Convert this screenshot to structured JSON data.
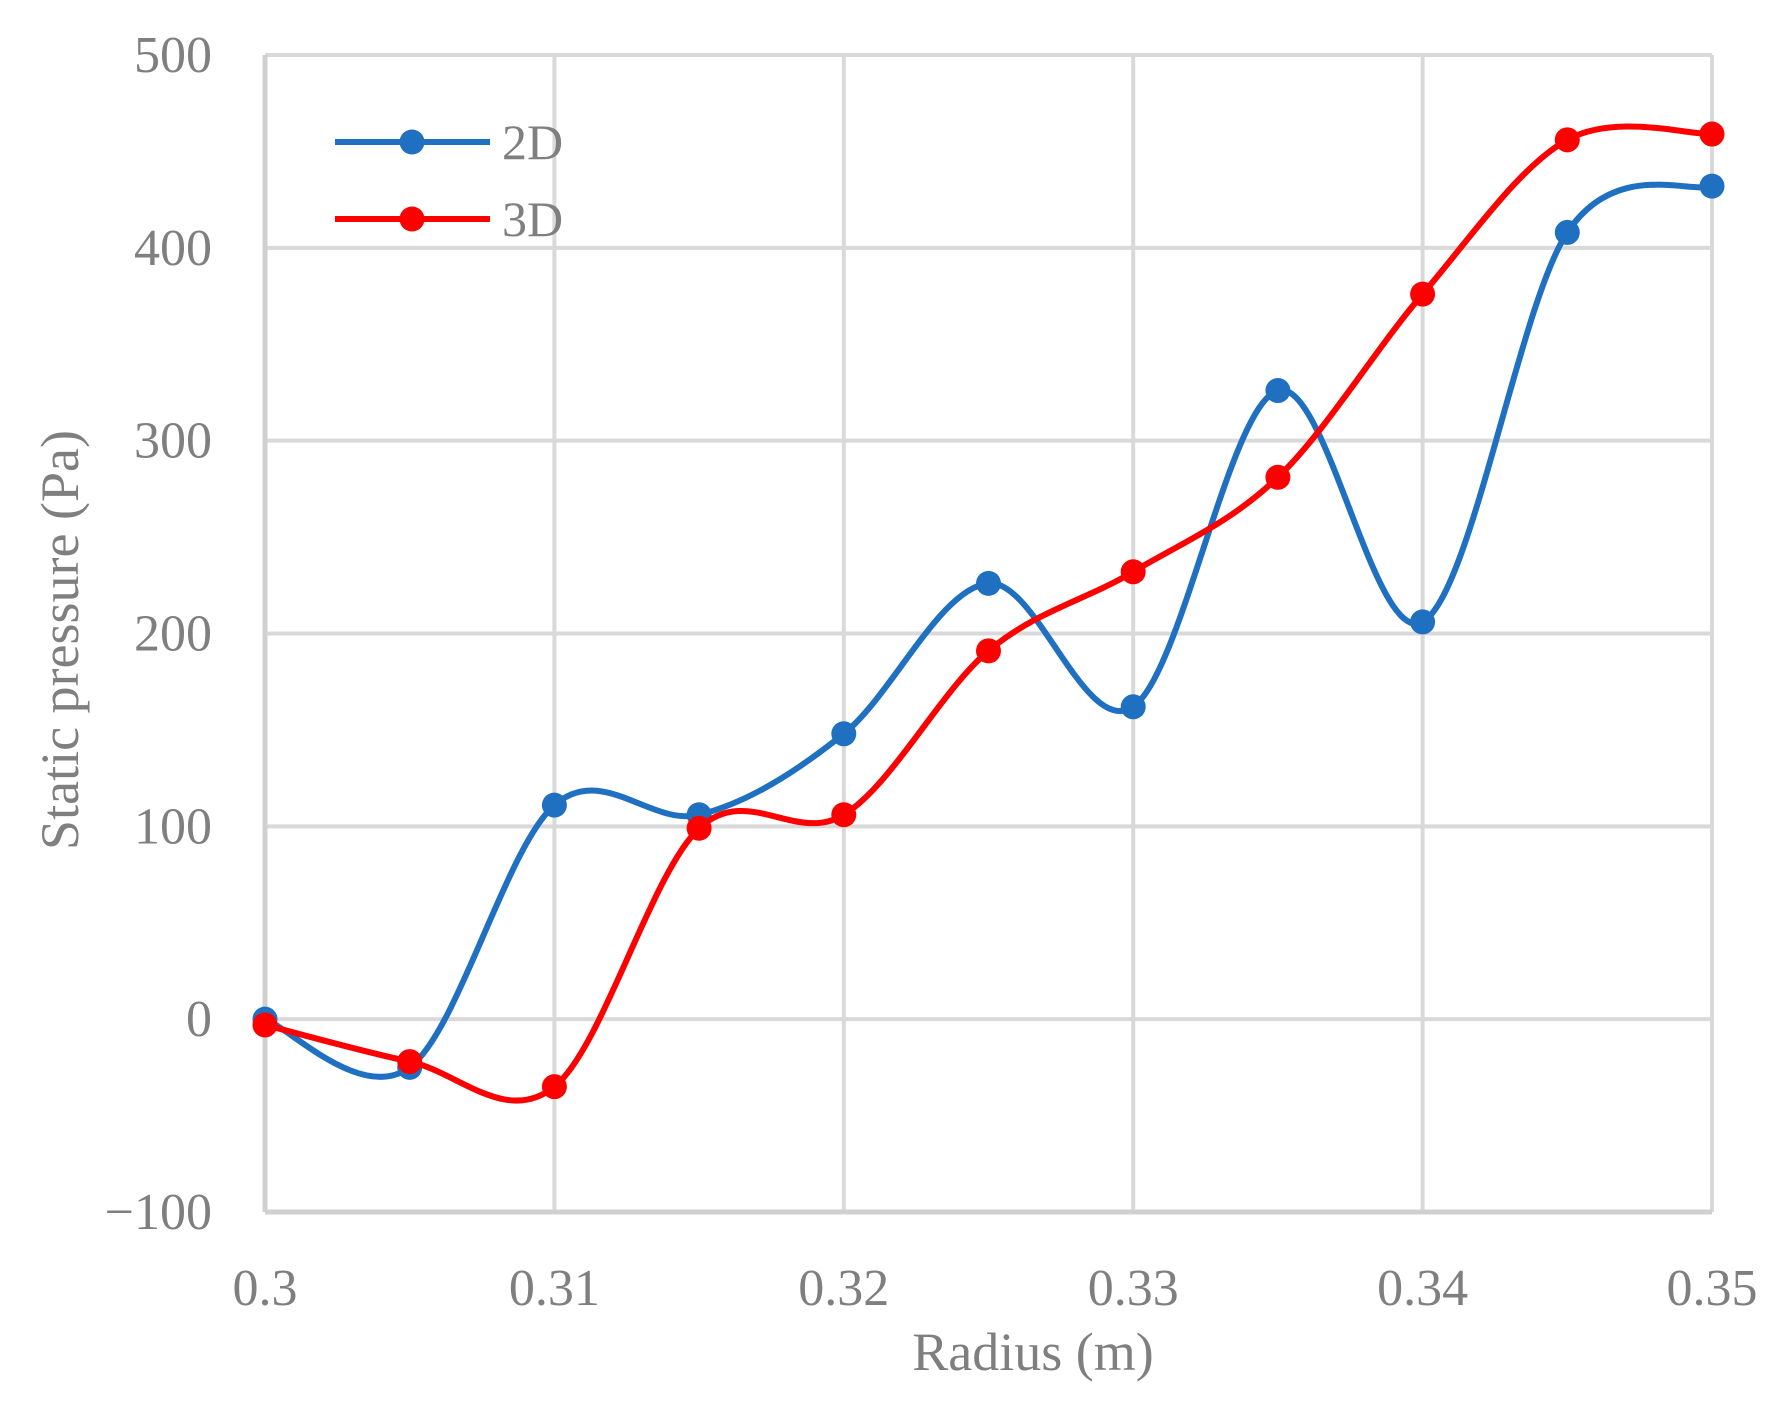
{
  "chart_data": {
    "type": "line",
    "xlabel": "Radius (m)",
    "ylabel": "Static pressure (Pa)",
    "xlim": [
      0.3,
      0.35
    ],
    "ylim": [
      -100,
      500
    ],
    "x_ticks": [
      "0.3",
      "0.31",
      "0.32",
      "0.33",
      "0.34",
      "0.35"
    ],
    "y_ticks": [
      "−100",
      "0",
      "100",
      "200",
      "300",
      "400",
      "500"
    ],
    "grid": true,
    "legend_position": "top-left",
    "smooth": true,
    "x": [
      0.3,
      0.305,
      0.31,
      0.315,
      0.32,
      0.325,
      0.33,
      0.335,
      0.34,
      0.345,
      0.35
    ],
    "series": [
      {
        "name": "2D",
        "color": "#1f70c1",
        "values": [
          0,
          -25,
          111,
          106,
          148,
          226,
          162,
          326,
          206,
          408,
          432
        ]
      },
      {
        "name": "3D",
        "color": "#ff0000",
        "values": [
          -3,
          -22,
          -35,
          99,
          106,
          191,
          232,
          281,
          376,
          456,
          459
        ]
      }
    ]
  }
}
